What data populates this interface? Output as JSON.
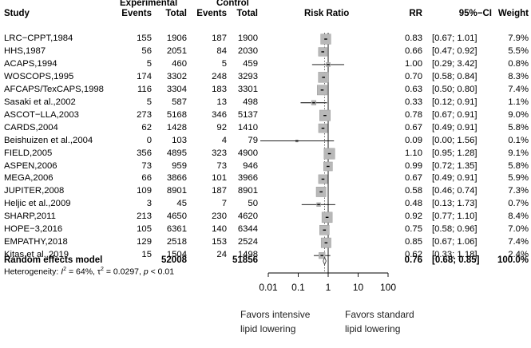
{
  "header": {
    "study": "Study",
    "experimental": "Experimental",
    "control": "Control",
    "events": "Events",
    "total": "Total",
    "risk_ratio": "Risk Ratio",
    "rr": "RR",
    "ci": "95%−CI",
    "weight": "Weight"
  },
  "chart_data": {
    "type": "forest",
    "x_scale": "log",
    "xlim": [
      0.01,
      100
    ],
    "reference_line": 1,
    "summary_line": 0.76,
    "x_ticks": [
      "0.01",
      "0.1",
      "1",
      "10",
      "100"
    ],
    "studies": [
      {
        "name": "LRC−CPPT,1984",
        "exp_events": "155",
        "exp_total": "1906",
        "ctrl_events": "187",
        "ctrl_total": "1900",
        "rr": 0.83,
        "lo": 0.67,
        "hi": 1.01,
        "rr_text": "0.83",
        "ci_text": "[0.67; 1.01]",
        "weight": 7.9,
        "weight_text": "7.9%"
      },
      {
        "name": "HHS,1987",
        "exp_events": "56",
        "exp_total": "2051",
        "ctrl_events": "84",
        "ctrl_total": "2030",
        "rr": 0.66,
        "lo": 0.47,
        "hi": 0.92,
        "rr_text": "0.66",
        "ci_text": "[0.47; 0.92]",
        "weight": 5.5,
        "weight_text": "5.5%"
      },
      {
        "name": "ACAPS,1994",
        "exp_events": "5",
        "exp_total": "460",
        "ctrl_events": "5",
        "ctrl_total": "459",
        "rr": 1.0,
        "lo": 0.29,
        "hi": 3.42,
        "rr_text": "1.00",
        "ci_text": "[0.29; 3.42]",
        "weight": 0.8,
        "weight_text": "0.8%"
      },
      {
        "name": "WOSCOPS,1995",
        "exp_events": "174",
        "exp_total": "3302",
        "ctrl_events": "248",
        "ctrl_total": "3293",
        "rr": 0.7,
        "lo": 0.58,
        "hi": 0.84,
        "rr_text": "0.70",
        "ci_text": "[0.58; 0.84]",
        "weight": 8.3,
        "weight_text": "8.3%"
      },
      {
        "name": "AFCAPS/TexCAPS,1998",
        "exp_events": "116",
        "exp_total": "3304",
        "ctrl_events": "183",
        "ctrl_total": "3301",
        "rr": 0.63,
        "lo": 0.5,
        "hi": 0.8,
        "rr_text": "0.63",
        "ci_text": "[0.50; 0.80]",
        "weight": 7.4,
        "weight_text": "7.4%"
      },
      {
        "name": "Sasaki et al.,2002",
        "exp_events": "5",
        "exp_total": "587",
        "ctrl_events": "13",
        "ctrl_total": "498",
        "rr": 0.33,
        "lo": 0.12,
        "hi": 0.91,
        "rr_text": "0.33",
        "ci_text": "[0.12; 0.91]",
        "weight": 1.1,
        "weight_text": "1.1%"
      },
      {
        "name": "ASCOT−LLA,2003",
        "exp_events": "273",
        "exp_total": "5168",
        "ctrl_events": "346",
        "ctrl_total": "5137",
        "rr": 0.78,
        "lo": 0.67,
        "hi": 0.91,
        "rr_text": "0.78",
        "ci_text": "[0.67; 0.91]",
        "weight": 9.0,
        "weight_text": "9.0%"
      },
      {
        "name": "CARDS,2004",
        "exp_events": "62",
        "exp_total": "1428",
        "ctrl_events": "92",
        "ctrl_total": "1410",
        "rr": 0.67,
        "lo": 0.49,
        "hi": 0.91,
        "rr_text": "0.67",
        "ci_text": "[0.49; 0.91]",
        "weight": 5.8,
        "weight_text": "5.8%"
      },
      {
        "name": "Beishuizen et al.,2004",
        "exp_events": "0",
        "exp_total": "103",
        "ctrl_events": "4",
        "ctrl_total": "79",
        "rr": 0.09,
        "lo": 0.0,
        "hi": 1.56,
        "rr_text": "0.09",
        "ci_text": "[0.00; 1.56]",
        "weight": 0.1,
        "weight_text": "0.1%"
      },
      {
        "name": "FIELD,2005",
        "exp_events": "356",
        "exp_total": "4895",
        "ctrl_events": "323",
        "ctrl_total": "4900",
        "rr": 1.1,
        "lo": 0.95,
        "hi": 1.28,
        "rr_text": "1.10",
        "ci_text": "[0.95; 1.28]",
        "weight": 9.1,
        "weight_text": "9.1%"
      },
      {
        "name": "ASPEN,2006",
        "exp_events": "73",
        "exp_total": "959",
        "ctrl_events": "73",
        "ctrl_total": "946",
        "rr": 0.99,
        "lo": 0.72,
        "hi": 1.35,
        "rr_text": "0.99",
        "ci_text": "[0.72; 1.35]",
        "weight": 5.8,
        "weight_text": "5.8%"
      },
      {
        "name": "MEGA,2006",
        "exp_events": "66",
        "exp_total": "3866",
        "ctrl_events": "101",
        "ctrl_total": "3966",
        "rr": 0.67,
        "lo": 0.49,
        "hi": 0.91,
        "rr_text": "0.67",
        "ci_text": "[0.49; 0.91]",
        "weight": 5.9,
        "weight_text": "5.9%"
      },
      {
        "name": "JUPITER,2008",
        "exp_events": "109",
        "exp_total": "8901",
        "ctrl_events": "187",
        "ctrl_total": "8901",
        "rr": 0.58,
        "lo": 0.46,
        "hi": 0.74,
        "rr_text": "0.58",
        "ci_text": "[0.46; 0.74]",
        "weight": 7.3,
        "weight_text": "7.3%"
      },
      {
        "name": "Heljic et al.,2009",
        "exp_events": "3",
        "exp_total": "45",
        "ctrl_events": "7",
        "ctrl_total": "50",
        "rr": 0.48,
        "lo": 0.13,
        "hi": 1.73,
        "rr_text": "0.48",
        "ci_text": "[0.13; 1.73]",
        "weight": 0.7,
        "weight_text": "0.7%"
      },
      {
        "name": "SHARP,2011",
        "exp_events": "213",
        "exp_total": "4650",
        "ctrl_events": "230",
        "ctrl_total": "4620",
        "rr": 0.92,
        "lo": 0.77,
        "hi": 1.1,
        "rr_text": "0.92",
        "ci_text": "[0.77; 1.10]",
        "weight": 8.4,
        "weight_text": "8.4%"
      },
      {
        "name": "HOPE−3,2016",
        "exp_events": "105",
        "exp_total": "6361",
        "ctrl_events": "140",
        "ctrl_total": "6344",
        "rr": 0.75,
        "lo": 0.58,
        "hi": 0.96,
        "rr_text": "0.75",
        "ci_text": "[0.58; 0.96]",
        "weight": 7.0,
        "weight_text": "7.0%"
      },
      {
        "name": "EMPATHY,2018",
        "exp_events": "129",
        "exp_total": "2518",
        "ctrl_events": "153",
        "ctrl_total": "2524",
        "rr": 0.85,
        "lo": 0.67,
        "hi": 1.06,
        "rr_text": "0.85",
        "ci_text": "[0.67; 1.06]",
        "weight": 7.4,
        "weight_text": "7.4%"
      },
      {
        "name": "Kitas et al.,2019",
        "exp_events": "15",
        "exp_total": "1504",
        "ctrl_events": "24",
        "ctrl_total": "1498",
        "rr": 0.62,
        "lo": 0.33,
        "hi": 1.18,
        "rr_text": "0.62",
        "ci_text": "[0.33; 1.18]",
        "weight": 2.4,
        "weight_text": "2.4%"
      }
    ],
    "summary": {
      "label": "Random effects model",
      "exp_total": "52008",
      "ctrl_total": "51856",
      "rr": 0.76,
      "lo": 0.68,
      "hi": 0.85,
      "rr_text": "0.76",
      "ci_text": "[0.68; 0.85]",
      "weight_text": "100.0%"
    },
    "heterogeneity": {
      "prefix": "Heterogeneity: ",
      "i2_label": "I",
      "i2_sup": "2",
      "i2_value": " = 64%, ",
      "tau": "τ",
      "tau_sup": "2",
      "tau_value": " = 0.0297, ",
      "p_label": "p",
      "p_value": " < 0.01"
    },
    "favors": {
      "left_line1": "Favors intensive",
      "left_line2": "lipid lowering",
      "right_line1": "Favors standard",
      "right_line2": "lipid lowering"
    }
  }
}
